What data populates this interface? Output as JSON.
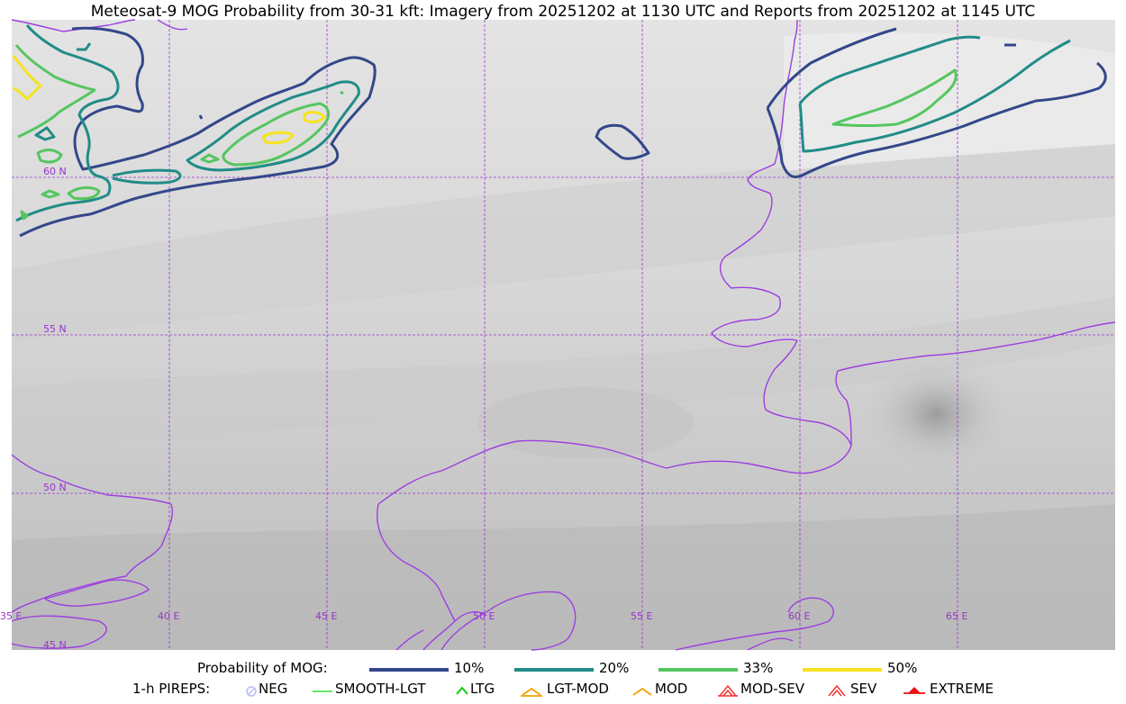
{
  "title": "Meteosat-9 MOG Probability from 30-31 kft: Imagery from 20251202 at 1130 UTC and Reports from 20251202 at 1145 UTC",
  "map": {
    "lat_labels": [
      "60 N",
      "55 N",
      "50 N",
      "45 N"
    ],
    "lon_labels": [
      "35 E",
      "40 E",
      "45 E",
      "50 E",
      "55 E",
      "60 E",
      "65 E"
    ],
    "colors": {
      "gridline": "#9933cc",
      "coastline": "#9d3fe0",
      "contour_10": "#33478a",
      "contour_20": "#218c87",
      "contour_33": "#55c65f",
      "contour_50": "#f5e31f"
    }
  },
  "legend": {
    "prob_title": "Probability of MOG:",
    "prob_levels": [
      {
        "label": "10%",
        "color": "#33478a"
      },
      {
        "label": "20%",
        "color": "#218c87"
      },
      {
        "label": "33%",
        "color": "#55c65f"
      },
      {
        "label": "50%",
        "color": "#f5e31f"
      }
    ],
    "pirep_title": "1-h PIREPS:",
    "pirep_items": [
      {
        "label": "NEG",
        "icon": "neg-circle-icon",
        "color": "#b9b9ff"
      },
      {
        "label": "SMOOTH-LGT",
        "icon": "smooth-line-icon",
        "color": "#33dd33"
      },
      {
        "label": "LTG",
        "icon": "ltg-caret-icon",
        "color": "#11cc11"
      },
      {
        "label": "LGT-MOD",
        "icon": "lgt-mod-caret-icon",
        "color": "#f2a100"
      },
      {
        "label": "MOD",
        "icon": "mod-caret-icon",
        "color": "#f2a100"
      },
      {
        "label": "MOD-SEV",
        "icon": "mod-sev-caret-icon",
        "color": "#ee3333"
      },
      {
        "label": "SEV",
        "icon": "sev-caret-icon",
        "color": "#ee3333"
      },
      {
        "label": "EXTREME",
        "icon": "extreme-caret-icon",
        "color": "#ee1111"
      }
    ]
  }
}
